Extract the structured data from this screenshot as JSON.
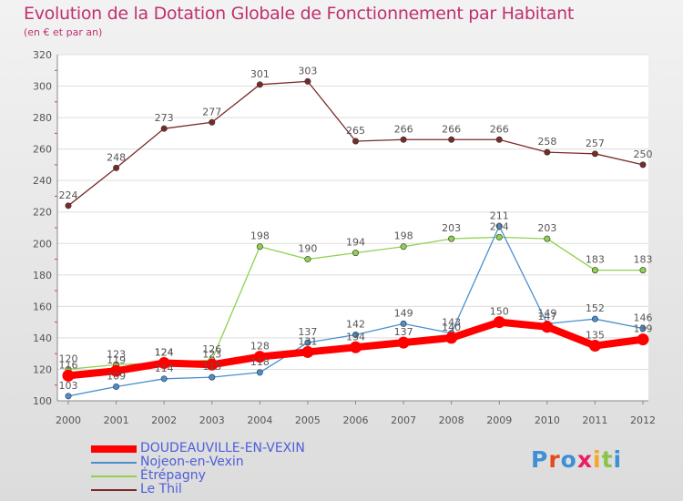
{
  "title": "Evolution de la Dotation Globale de Fonctionnement par Habitant",
  "subtitle": "(en € et par an)",
  "logo": {
    "text": "Proxiti",
    "colors": [
      "#3d8fd6",
      "#e64a19",
      "#3d8fd6",
      "#e91e63",
      "#f5a623",
      "#8bc34a",
      "#3d8fd6"
    ]
  },
  "chart_data": {
    "type": "line",
    "x": [
      "2000",
      "2001",
      "2002",
      "2003",
      "2004",
      "2005",
      "2006",
      "2007",
      "2008",
      "2009",
      "2010",
      "2011",
      "2012"
    ],
    "ylim": [
      100,
      320
    ],
    "yticks": [
      100,
      120,
      140,
      160,
      180,
      200,
      220,
      240,
      260,
      280,
      300,
      320
    ],
    "grid": "horizontal",
    "legend_position": "bottom-left",
    "series": [
      {
        "name": "DOUDEAUVILLE-EN-VEXIN",
        "color": "#ff0000",
        "values": [
          116,
          119,
          124,
          123,
          128,
          131,
          134,
          137,
          140,
          150,
          147,
          135,
          139
        ]
      },
      {
        "name": "Nojeon-en-Vexin",
        "color": "#4a8fcc",
        "values": [
          103,
          109,
          114,
          115,
          118,
          137,
          142,
          149,
          143,
          211,
          149,
          152,
          146
        ]
      },
      {
        "name": "Étrépagny",
        "color": "#8fd14f",
        "values": [
          120,
          123,
          124,
          126,
          198,
          190,
          194,
          198,
          203,
          204,
          203,
          183,
          183
        ]
      },
      {
        "name": "Le Thil",
        "color": "#7a2a2a",
        "values": [
          224,
          248,
          273,
          277,
          301,
          303,
          265,
          266,
          266,
          266,
          258,
          257,
          250
        ]
      }
    ]
  }
}
